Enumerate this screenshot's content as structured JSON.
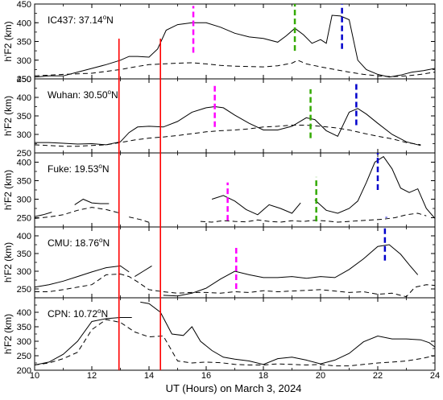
{
  "figure": {
    "xlabel": "UT (Hours) on March 3, 2024",
    "ylabel": "h'F2 (km)",
    "xlim": [
      10,
      24
    ],
    "xticks": [
      10,
      12,
      14,
      16,
      18,
      20,
      22,
      24
    ],
    "ylabel_superscript": "o"
  },
  "chart_data": [
    {
      "type": "line",
      "station": "IC437: 37.14",
      "lat_suffix": "N",
      "ylim": [
        250,
        450
      ],
      "yticks": [
        250,
        300,
        350,
        400,
        450
      ],
      "series": [
        {
          "style": "solid",
          "x": [
            10,
            10.5,
            11,
            11.5,
            12,
            12.5,
            13,
            13.3,
            13.6,
            14,
            14.3,
            14.6,
            15,
            15.5,
            16,
            16.5,
            17,
            17.5,
            18,
            18.5,
            18.8,
            19.1,
            19.4,
            19.7,
            20,
            20.2,
            20.4,
            20.7,
            21,
            21.3,
            21.6,
            22,
            22.4,
            22.8,
            23.2,
            23.6,
            24
          ],
          "y": [
            255,
            258,
            258,
            268,
            278,
            288,
            300,
            310,
            310,
            308,
            330,
            380,
            395,
            400,
            400,
            388,
            372,
            362,
            358,
            348,
            365,
            385,
            368,
            345,
            355,
            345,
            420,
            418,
            408,
            300,
            275,
            262,
            255,
            260,
            268,
            272,
            278
          ]
        },
        {
          "style": "dashed",
          "x": [
            10,
            11,
            12,
            13,
            13.5,
            14,
            14.5,
            15,
            15.5,
            16,
            16.5,
            17,
            17.5,
            18,
            18.5,
            19,
            19.2,
            19.5,
            20,
            20.5,
            21,
            21.5,
            22,
            22.5,
            23,
            23.5,
            24
          ],
          "y": [
            258,
            262,
            265,
            275,
            282,
            288,
            290,
            292,
            293,
            290,
            286,
            284,
            283,
            282,
            285,
            292,
            300,
            290,
            282,
            275,
            268,
            262,
            258,
            256,
            258,
            262,
            268
          ]
        }
      ],
      "markers": [
        {
          "color": "#ff00ff",
          "x": 15.55,
          "y_from": 320,
          "y_to": 445
        },
        {
          "color": "#33aa00",
          "x": 19.1,
          "y_from": 325,
          "y_to": 450
        },
        {
          "color": "#0000cc",
          "x": 20.75,
          "y_from": 330,
          "y_to": 450
        }
      ]
    },
    {
      "type": "line",
      "station": "Wuhan: 30.50",
      "lat_suffix": "N",
      "ylim": [
        250,
        450
      ],
      "yticks": [
        250,
        300,
        350,
        400,
        450
      ],
      "series": [
        {
          "style": "solid",
          "x": [
            10,
            10.5,
            11,
            11.5,
            12,
            12.5,
            13,
            13.3,
            13.6,
            14,
            14.5,
            15,
            15.5,
            16,
            16.3,
            16.6,
            17,
            17.5,
            18,
            18.5,
            19,
            19.5,
            19.8,
            20.2,
            20.6,
            21,
            21.3,
            21.6,
            22,
            22.5,
            23,
            23.5
          ],
          "y": [
            278,
            278,
            276,
            274,
            275,
            272,
            280,
            305,
            320,
            322,
            320,
            335,
            360,
            372,
            375,
            372,
            352,
            330,
            312,
            312,
            322,
            345,
            340,
            310,
            295,
            360,
            370,
            355,
            330,
            300,
            280,
            270
          ]
        },
        {
          "style": "dashed",
          "x": [
            10,
            10.5,
            11,
            11.5,
            12,
            12.5,
            13,
            13.5,
            14,
            14.5,
            15,
            15.5,
            16,
            16.5,
            17,
            17.5,
            18,
            18.5,
            19,
            19.5,
            20,
            20.5,
            21,
            21.5,
            22,
            22.5,
            23,
            23.5
          ],
          "y": [
            272,
            270,
            268,
            268,
            270,
            272,
            278,
            285,
            290,
            293,
            297,
            302,
            307,
            310,
            312,
            315,
            320,
            322,
            325,
            325,
            322,
            318,
            312,
            303,
            295,
            288,
            278,
            272
          ]
        }
      ],
      "markers": [
        {
          "color": "#ff00ff",
          "x": 16.3,
          "y_from": 320,
          "y_to": 435
        },
        {
          "color": "#33aa00",
          "x": 19.65,
          "y_from": 290,
          "y_to": 422
        },
        {
          "color": "#0000cc",
          "x": 21.25,
          "y_from": 325,
          "y_to": 440
        }
      ]
    },
    {
      "type": "line",
      "station": "Fuke: 19.53",
      "lat_suffix": "N",
      "ylim": [
        225,
        425
      ],
      "yticks": [
        250,
        300,
        350,
        400
      ],
      "series": [
        {
          "style": "solid",
          "x": [
            10,
            10.3,
            10.6
          ],
          "y": [
            253,
            258,
            265
          ]
        },
        {
          "style": "solid",
          "x": [
            11.4,
            11.7,
            12,
            12.3,
            12.6
          ],
          "y": [
            285,
            300,
            290,
            288,
            288
          ]
        },
        {
          "style": "solid",
          "x": [
            16.2,
            16.6,
            17,
            17.4,
            17.8,
            18.2,
            18.6,
            19,
            19.3
          ],
          "y": [
            300,
            310,
            295,
            272,
            258,
            285,
            275,
            262,
            290
          ]
        },
        {
          "style": "solid",
          "x": [
            19.8,
            20.2,
            20.6,
            21,
            21.3,
            21.6,
            21.9,
            22.2,
            22.5,
            22.8,
            23.1,
            23.4,
            23.7,
            24
          ],
          "y": [
            298,
            270,
            262,
            275,
            295,
            345,
            400,
            415,
            382,
            330,
            318,
            328,
            275,
            248
          ]
        }
      ],
      "dashed": [
        {
          "x": [
            10,
            10.5,
            11,
            11.5,
            12,
            12.5,
            13
          ],
          "y": [
            248,
            252,
            258,
            270,
            278,
            272,
            262
          ]
        },
        {
          "x": [
            13.3,
            13.7,
            14.1
          ],
          "y": [
            252,
            245,
            235
          ]
        },
        {
          "x": [
            15.8,
            16.2,
            16.6,
            17,
            17.4,
            17.8,
            18.2,
            18.6,
            19,
            19.4,
            19.8,
            20.2,
            20.6,
            21,
            21.4,
            21.8,
            22.2,
            22.6,
            23,
            23.4,
            23.7
          ],
          "y": [
            240,
            238,
            242,
            240,
            239,
            244,
            240,
            238,
            242,
            240,
            243,
            241,
            238,
            240,
            242,
            244,
            246,
            250,
            258,
            262,
            255
          ]
        }
      ],
      "markers": [
        {
          "color": "#ff00ff",
          "x": 16.75,
          "y_from": 242,
          "y_to": 345
        },
        {
          "color": "#33aa00",
          "x": 19.85,
          "y_from": 240,
          "y_to": 360
        },
        {
          "color": "#0000cc",
          "x": 22.0,
          "y_from": 325,
          "y_to": 425
        },
        {
          "color": "#0000cc",
          "x": 22.3,
          "y_from": 250,
          "y_to": 252
        }
      ]
    },
    {
      "type": "line",
      "station": "CMU: 18.76",
      "lat_suffix": "N",
      "ylim": [
        225,
        425
      ],
      "yticks": [
        250,
        300,
        350,
        400
      ],
      "series": [
        {
          "style": "solid",
          "x": [
            10,
            10.5,
            11,
            11.5,
            12,
            12.5,
            13,
            13.3
          ],
          "y": [
            255,
            262,
            272,
            285,
            298,
            310,
            315,
            298
          ]
        },
        {
          "style": "solid",
          "x": [
            13.5,
            13.8,
            14.1
          ],
          "y": [
            285,
            300,
            315
          ]
        },
        {
          "style": "solid",
          "x": [
            14.5,
            15,
            15.5,
            16,
            16.5,
            17,
            17.5,
            18,
            18.5,
            19,
            19.5,
            20,
            20.5,
            21,
            21.5,
            22,
            22.4,
            22.8,
            23.1,
            23.4
          ],
          "y": [
            232,
            230,
            238,
            252,
            278,
            300,
            290,
            282,
            282,
            285,
            280,
            285,
            282,
            305,
            335,
            370,
            375,
            348,
            318,
            290
          ]
        }
      ],
      "dashed": [
        {
          "x": [
            10,
            10.5,
            11,
            11.5,
            12,
            12.5,
            13,
            13.3,
            13.6,
            14,
            14.5,
            15,
            15.5,
            16,
            16.5,
            17,
            17.5,
            18,
            18.5,
            19,
            19.5,
            20,
            20.5,
            21,
            21.5,
            22,
            22.5,
            23,
            23.3,
            23.7,
            24
          ],
          "y": [
            242,
            242,
            248,
            255,
            262,
            290,
            292,
            285,
            270,
            248,
            242,
            238,
            240,
            240,
            238,
            242,
            240,
            245,
            242,
            244,
            246,
            248,
            244,
            240,
            242,
            235,
            238,
            228,
            255,
            262,
            260
          ]
        }
      ],
      "markers": [
        {
          "color": "#ff00ff",
          "x": 17.05,
          "y_from": 250,
          "y_to": 375
        },
        {
          "color": "#0000cc",
          "x": 22.25,
          "y_from": 330,
          "y_to": 430
        }
      ]
    },
    {
      "type": "line",
      "station": "CPN: 10.72",
      "lat_suffix": "N",
      "ylim": [
        200,
        450
      ],
      "yticks": [
        200,
        250,
        300,
        350,
        400
      ],
      "series": [
        {
          "style": "solid",
          "x": [
            10,
            10.5,
            11,
            11.5,
            12,
            12.5,
            13,
            13.4
          ],
          "y": [
            218,
            228,
            255,
            300,
            368,
            378,
            382,
            382
          ]
        },
        {
          "style": "solid",
          "x": [
            13.7,
            14,
            14.4,
            14.8,
            15.2,
            15.5,
            15.8,
            16.2,
            16.6,
            17,
            17.5,
            18,
            18.5,
            19,
            19.5,
            20,
            20.5,
            21,
            21.5,
            22,
            22.5,
            23,
            23.5,
            23.8,
            24
          ],
          "y": [
            435,
            430,
            400,
            325,
            320,
            350,
            300,
            268,
            245,
            238,
            232,
            220,
            240,
            245,
            235,
            222,
            235,
            258,
            298,
            318,
            308,
            308,
            305,
            295,
            280
          ]
        }
      ],
      "dashed": [
        {
          "x": [
            10,
            10.5,
            11,
            11.5,
            12,
            12.5,
            13,
            13.5,
            14,
            14.5,
            15,
            15.5,
            16,
            16.5,
            17,
            17.5,
            18,
            18.5,
            19,
            19.5,
            20,
            20.5,
            21,
            21.5,
            22,
            22.5,
            23,
            23.5,
            24
          ],
          "y": [
            218,
            225,
            240,
            262,
            340,
            375,
            365,
            332,
            315,
            318,
            232,
            225,
            228,
            226,
            220,
            218,
            218,
            222,
            220,
            218,
            220,
            215,
            215,
            220,
            225,
            228,
            232,
            240,
            250
          ]
        }
      ],
      "markers": []
    }
  ],
  "vertical_lines": {
    "color": "#ff0000",
    "x": [
      12.95,
      14.4
    ]
  }
}
